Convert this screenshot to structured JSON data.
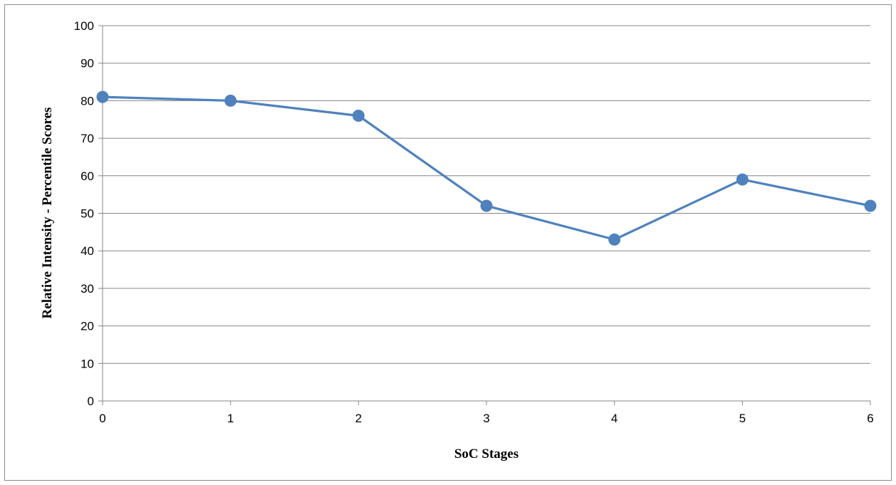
{
  "chart_data": {
    "type": "line",
    "title": "",
    "xlabel": "SoC Stages",
    "ylabel": "Relative Intensity - Percentile Scores",
    "x": [
      0,
      1,
      2,
      3,
      4,
      5,
      6
    ],
    "y_ticks": [
      0,
      10,
      20,
      30,
      40,
      50,
      60,
      70,
      80,
      90,
      100
    ],
    "ylim": [
      0,
      100
    ],
    "xlim": [
      0,
      6
    ],
    "grid": true,
    "legend": "none",
    "series": [
      {
        "values": [
          81,
          80,
          76,
          52,
          43,
          59,
          52
        ],
        "color": "#4f81bd"
      }
    ]
  },
  "colors": {
    "line": "#4f81bd",
    "grid": "#868686",
    "axis": "#868686"
  }
}
